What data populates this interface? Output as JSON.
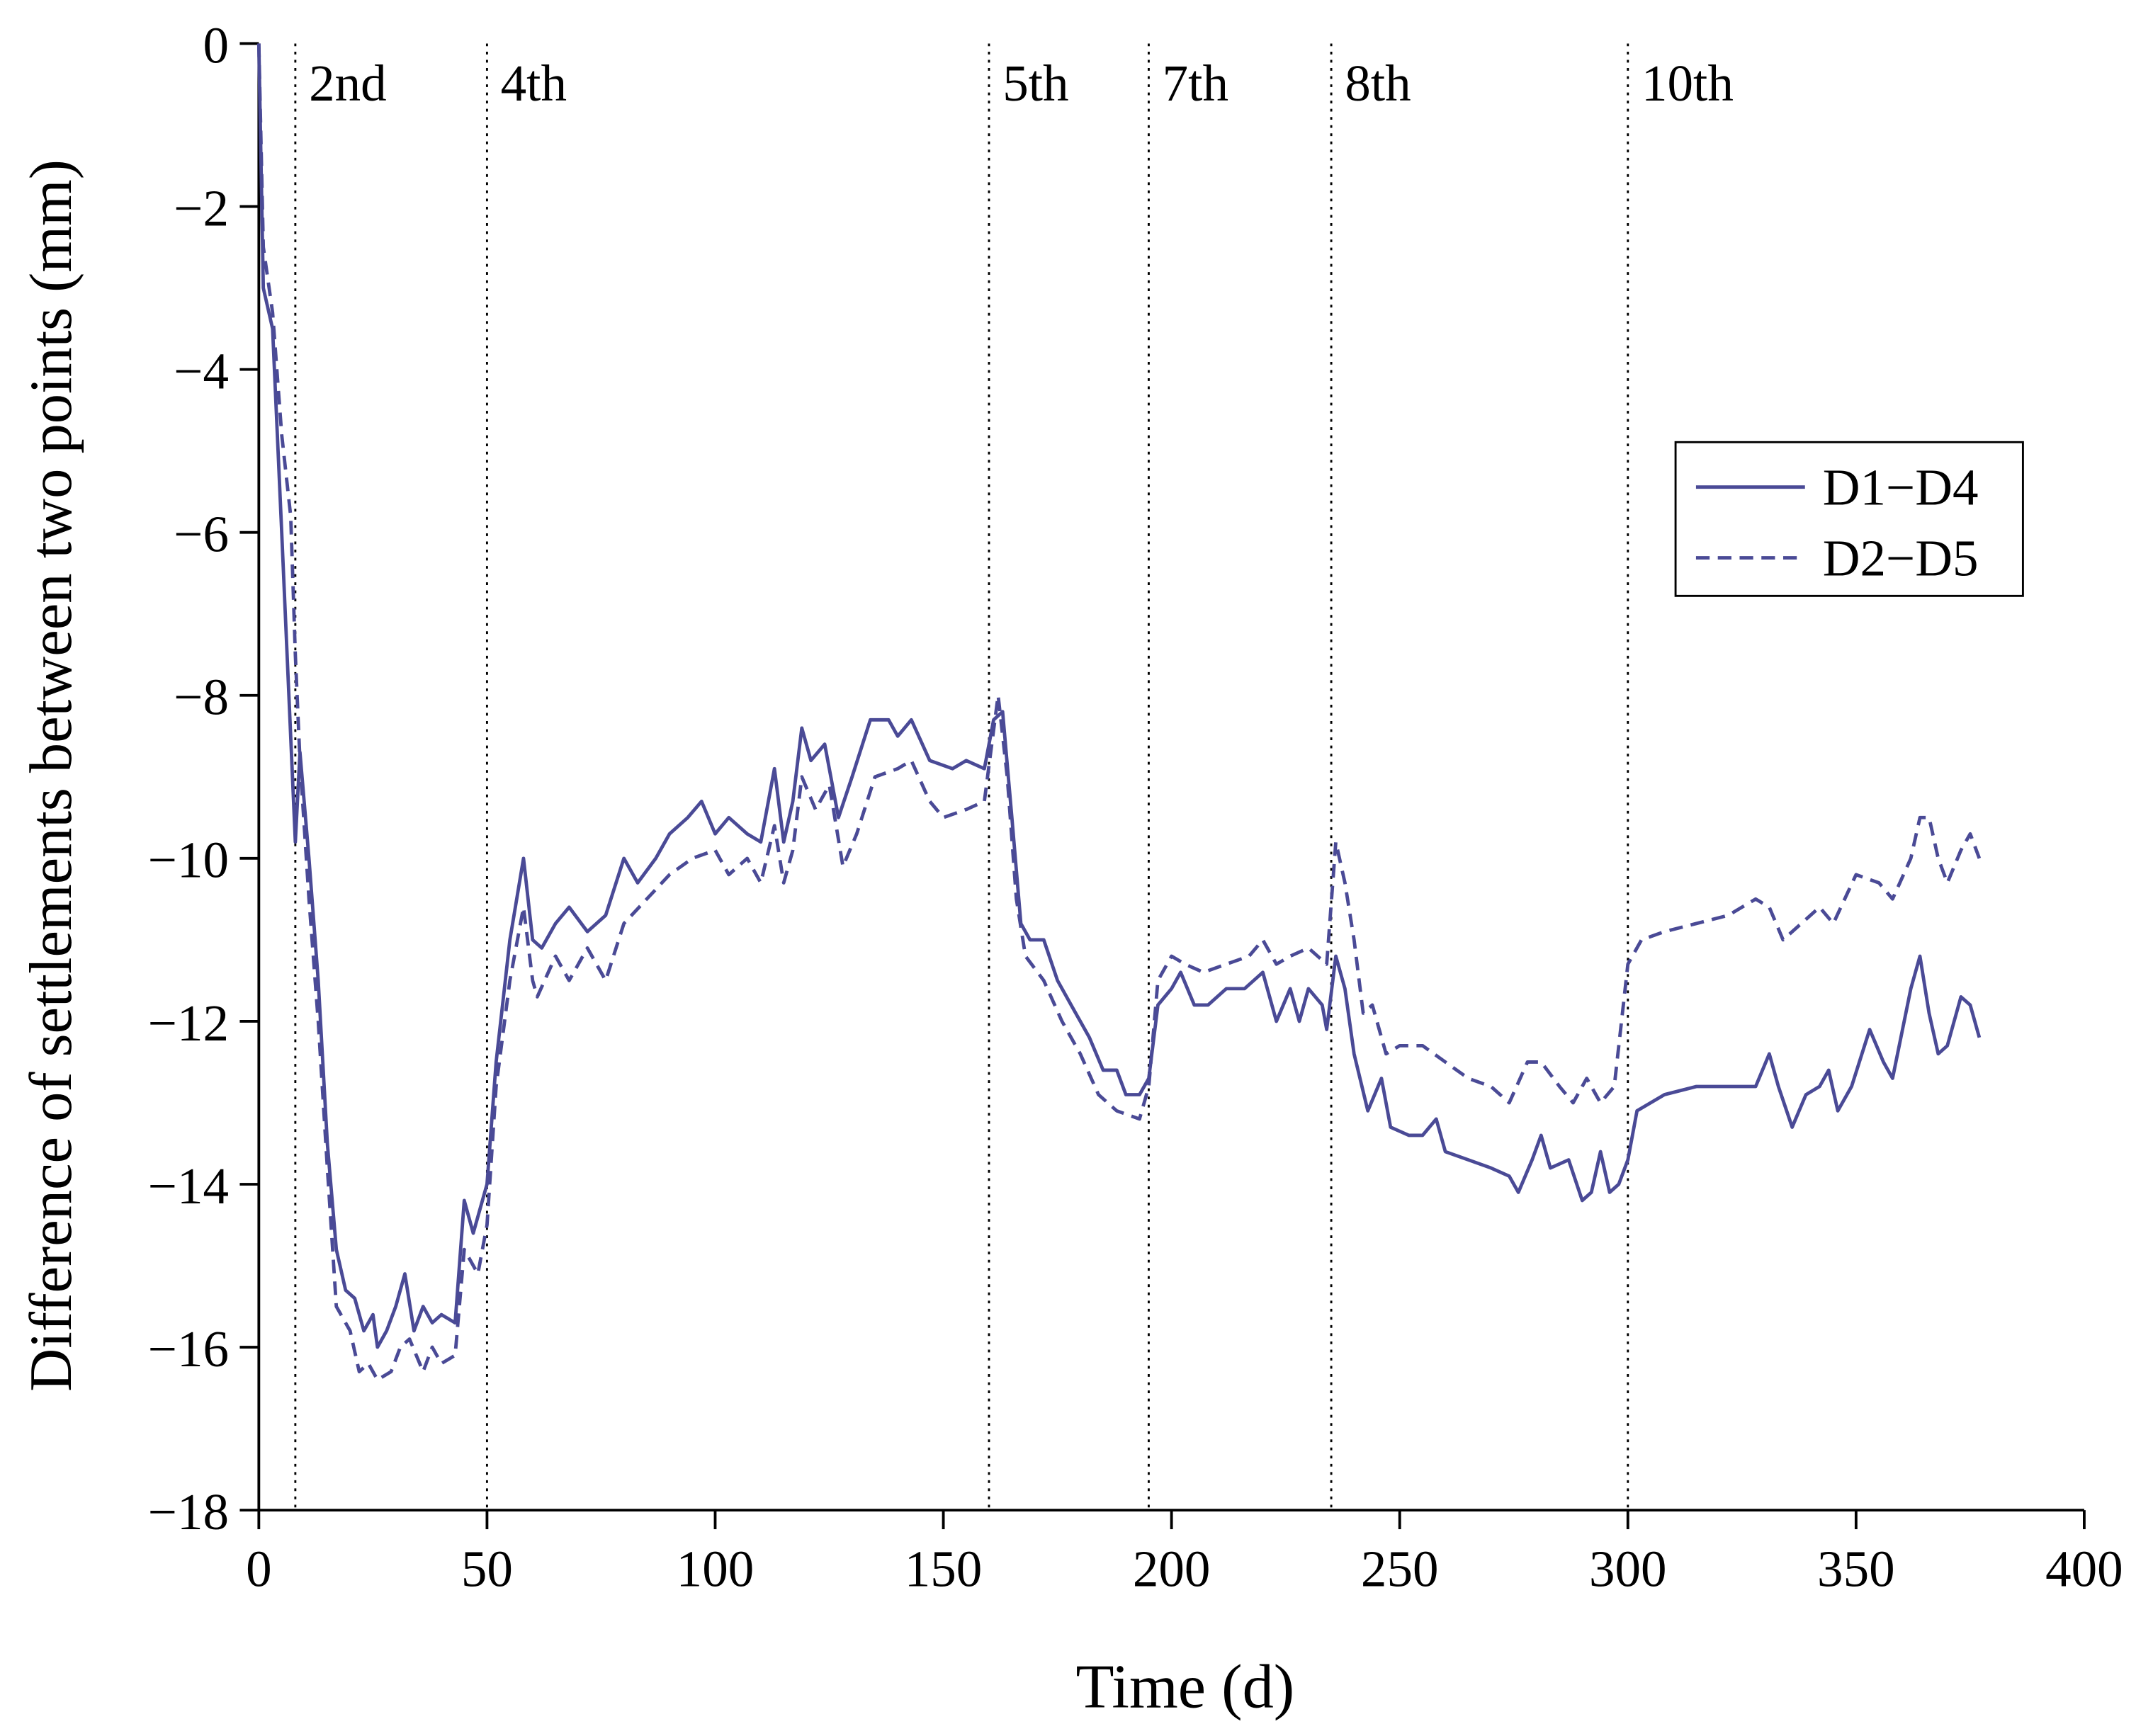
{
  "chart_data": {
    "type": "line",
    "xlabel": "Time (d)",
    "ylabel": "Difference of settlements between two points (mm)",
    "xlim": [
      0,
      400
    ],
    "xticks": [
      0,
      50,
      100,
      150,
      200,
      250,
      300,
      350,
      400
    ],
    "ylim": [
      -18,
      0
    ],
    "yticks": [
      {
        "value": -18,
        "label": "−18"
      },
      {
        "value": -16,
        "label": "−16"
      },
      {
        "value": -14,
        "label": "−14"
      },
      {
        "value": -12,
        "label": "−12"
      },
      {
        "value": -10,
        "label": "−10"
      },
      {
        "value": -8,
        "label": "−8"
      },
      {
        "value": -6,
        "label": "−6"
      },
      {
        "value": -4,
        "label": "−4"
      },
      {
        "value": -2,
        "label": "−2"
      },
      0
    ],
    "grid": false,
    "legend": "upper right",
    "annotations": [
      {
        "x": 8,
        "text": "2nd"
      },
      {
        "x": 50,
        "text": "4th"
      },
      {
        "x": 160,
        "text": "5th"
      },
      {
        "x": 195,
        "text": "7th"
      },
      {
        "x": 235,
        "text": "8th"
      },
      {
        "x": 300,
        "text": "10th"
      }
    ],
    "series": [
      {
        "name": "D1−D4",
        "color": "#4a4a96",
        "linestyle": "solid",
        "x": [
          0,
          1,
          3,
          5,
          8,
          9,
          11,
          13,
          15,
          17,
          19,
          21,
          23,
          25,
          26,
          28,
          30,
          32,
          34,
          36,
          38,
          40,
          43,
          45,
          47,
          50,
          52,
          55,
          58,
          60,
          62,
          65,
          68,
          72,
          76,
          80,
          83,
          87,
          90,
          94,
          97,
          100,
          103,
          107,
          110,
          113,
          115,
          117,
          119,
          121,
          124,
          127,
          130,
          134,
          138,
          140,
          143,
          147,
          152,
          155,
          159,
          161,
          163,
          165,
          167,
          169,
          172,
          175,
          178,
          182,
          185,
          188,
          190,
          193,
          195,
          197,
          200,
          202,
          205,
          208,
          212,
          216,
          220,
          223,
          226,
          228,
          230,
          233,
          234,
          236,
          238,
          240,
          243,
          246,
          248,
          252,
          255,
          258,
          260,
          265,
          270,
          274,
          276,
          279,
          281,
          283,
          287,
          290,
          292,
          294,
          296,
          298,
          300,
          302,
          308,
          315,
          325,
          328,
          331,
          333,
          336,
          339,
          342,
          344,
          346,
          349,
          353,
          356,
          358,
          362,
          364,
          366,
          368,
          370,
          373,
          375,
          377
        ],
        "values": [
          0,
          -3,
          -3.5,
          -6,
          -9.8,
          -8.7,
          -10,
          -11.5,
          -13.5,
          -14.8,
          -15.3,
          -15.4,
          -15.8,
          -15.6,
          -16,
          -15.8,
          -15.5,
          -15.1,
          -15.8,
          -15.5,
          -15.7,
          -15.6,
          -15.7,
          -14.2,
          -14.6,
          -14,
          -12.5,
          -11,
          -10,
          -11,
          -11.1,
          -10.8,
          -10.6,
          -10.9,
          -10.7,
          -10,
          -10.3,
          -10,
          -9.7,
          -9.5,
          -9.3,
          -9.7,
          -9.5,
          -9.7,
          -9.8,
          -8.9,
          -9.8,
          -9.3,
          -8.4,
          -8.8,
          -8.6,
          -9.5,
          -9,
          -8.3,
          -8.3,
          -8.5,
          -8.3,
          -8.8,
          -8.9,
          -8.8,
          -8.9,
          -8.3,
          -8.2,
          -9.5,
          -10.8,
          -11,
          -11,
          -11.5,
          -11.8,
          -12.2,
          -12.6,
          -12.6,
          -12.9,
          -12.9,
          -12.7,
          -11.8,
          -11.6,
          -11.4,
          -11.8,
          -11.8,
          -11.6,
          -11.6,
          -11.4,
          -12,
          -11.6,
          -12,
          -11.6,
          -11.8,
          -12.1,
          -11.2,
          -11.6,
          -12.4,
          -13.1,
          -12.7,
          -13.3,
          -13.4,
          -13.4,
          -13.2,
          -13.6,
          -13.7,
          -13.8,
          -13.9,
          -14.1,
          -13.7,
          -13.4,
          -13.8,
          -13.7,
          -14.2,
          -14.1,
          -13.6,
          -14.1,
          -14,
          -13.7,
          -13.1,
          -12.9,
          -12.8,
          -12.8,
          -12.8,
          -12.4,
          -12.8,
          -13.3,
          -12.9,
          -12.8,
          -12.6,
          -13.1,
          -12.8,
          -12.1,
          -12.5,
          -12.7,
          -11.6,
          -11.2,
          -11.9,
          -12.4,
          -12.3,
          -11.7,
          -11.8,
          -12.2
        ]
      },
      {
        "name": "D2−D5",
        "color": "#4a4a96",
        "linestyle": "dashed",
        "x": [
          0,
          1,
          3,
          5,
          7,
          8,
          9,
          11,
          13,
          15,
          17,
          20,
          22,
          24,
          26,
          29,
          31,
          33,
          36,
          38,
          40,
          43,
          45,
          48,
          50,
          52,
          55,
          58,
          60,
          61,
          65,
          68,
          72,
          76,
          80,
          85,
          90,
          95,
          100,
          103,
          107,
          110,
          113,
          115,
          117,
          119,
          122,
          125,
          128,
          131,
          135,
          140,
          143,
          147,
          150,
          155,
          159,
          162,
          164,
          166,
          168,
          172,
          176,
          180,
          184,
          188,
          193,
          195,
          197,
          200,
          203,
          207,
          212,
          217,
          220,
          223,
          226,
          230,
          234,
          236,
          238,
          240,
          242,
          244,
          247,
          250,
          255,
          260,
          265,
          270,
          274,
          278,
          281,
          285,
          288,
          291,
          294,
          297,
          300,
          303,
          308,
          315,
          322,
          328,
          331,
          334,
          338,
          342,
          345,
          350,
          355,
          358,
          362,
          364,
          366,
          368,
          370,
          373,
          375,
          377
        ],
        "values": [
          0,
          -2.5,
          -3.3,
          -4.8,
          -5.8,
          -7.5,
          -8.8,
          -10.5,
          -12,
          -13.8,
          -15.5,
          -15.8,
          -16.3,
          -16.2,
          -16.4,
          -16.3,
          -16,
          -15.9,
          -16.3,
          -16,
          -16.2,
          -16.1,
          -14.8,
          -15.1,
          -14.5,
          -12.8,
          -11.5,
          -10.6,
          -11.5,
          -11.7,
          -11.2,
          -11.5,
          -11.1,
          -11.5,
          -10.8,
          -10.5,
          -10.2,
          -10,
          -9.9,
          -10.2,
          -10,
          -10.3,
          -9.6,
          -10.3,
          -9.9,
          -9,
          -9.4,
          -9.1,
          -10.1,
          -9.7,
          -9,
          -8.9,
          -8.8,
          -9.3,
          -9.5,
          -9.4,
          -9.3,
          -8,
          -9,
          -10.5,
          -11.2,
          -11.5,
          -12,
          -12.4,
          -12.9,
          -13.1,
          -13.2,
          -12.8,
          -11.5,
          -11.2,
          -11.3,
          -11.4,
          -11.3,
          -11.2,
          -11,
          -11.3,
          -11.2,
          -11.1,
          -11.3,
          -9.8,
          -10.3,
          -11,
          -11.9,
          -11.8,
          -12.4,
          -12.3,
          -12.3,
          -12.5,
          -12.7,
          -12.8,
          -13,
          -12.5,
          -12.5,
          -12.8,
          -13,
          -12.7,
          -13,
          -12.8,
          -11.3,
          -11,
          -10.9,
          -10.8,
          -10.7,
          -10.5,
          -10.6,
          -11,
          -10.8,
          -10.6,
          -10.8,
          -10.2,
          -10.3,
          -10.5,
          -10,
          -9.5,
          -9.5,
          -10,
          -10.3,
          -9.9,
          -9.7,
          -10
        ]
      }
    ]
  }
}
